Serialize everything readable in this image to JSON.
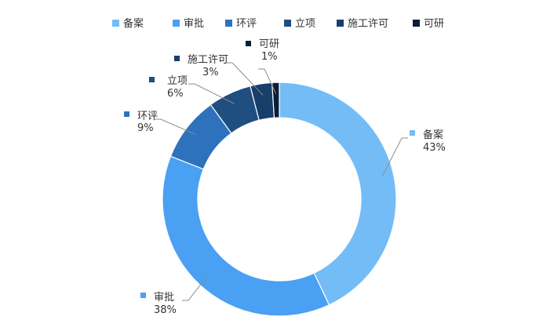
{
  "chart_data": {
    "type": "pie",
    "variant": "donut",
    "title": "",
    "legend_position": "top",
    "categories": [
      "备案",
      "审批",
      "环评",
      "立项",
      "施工许可",
      "可研"
    ],
    "values": [
      43,
      38,
      9,
      6,
      3,
      1
    ],
    "labels": [
      "43%",
      "38%",
      "9%",
      "6%",
      "3%",
      "1%"
    ],
    "colors": [
      "#74bcf6",
      "#4aa0f2",
      "#2e72bd",
      "#1f4e80",
      "#183e6c",
      "#0c1d38"
    ]
  }
}
